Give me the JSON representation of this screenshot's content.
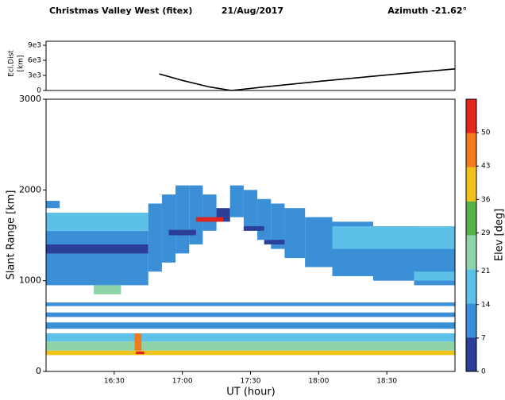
{
  "header": {
    "left": "Christmas Valley West  (fitex)",
    "center": "21/Aug/2017",
    "right": "Azimuth -21.62°"
  },
  "chart_data": [
    {
      "type": "line",
      "ylabel": "Ecl.Dist",
      "yunit": "[km]",
      "x": [
        16.83,
        17.0,
        17.2,
        17.36,
        17.6,
        18.0,
        18.5,
        19.0
      ],
      "values": [
        3300,
        2000,
        700,
        0,
        700,
        1800,
        3100,
        4300
      ],
      "color": "#000000",
      "xlim": [
        16.0,
        19.0
      ],
      "ylim": [
        0,
        9800
      ],
      "yticks": [
        0,
        {
          "value": 3000,
          "label": "3e3"
        },
        {
          "value": 6000,
          "label": "6e3"
        },
        {
          "value": 9000,
          "label": "9e3"
        }
      ]
    },
    {
      "type": "heatmap",
      "xlabel": "UT (hour)",
      "ylabel": "Slant Range [km]",
      "xlim": [
        16.0,
        19.0
      ],
      "ylim": [
        0,
        3000
      ],
      "xticks": [
        {
          "value": 16.5,
          "label": "16:30"
        },
        {
          "value": 17.0,
          "label": "17:00"
        },
        {
          "value": 17.5,
          "label": "17:30"
        },
        {
          "value": 18.0,
          "label": "18:00"
        },
        {
          "value": 18.5,
          "label": "18:30"
        }
      ],
      "yticks": [
        0,
        1000,
        2000,
        3000
      ],
      "colorbar": {
        "label": "Elev [deg]",
        "lim": [
          0,
          57
        ],
        "ticks": [
          0,
          7,
          14,
          21,
          29,
          36,
          43,
          50
        ],
        "colors": [
          "#2b3f99",
          "#3a8fd6",
          "#5cc0e8",
          "#8fd3a8",
          "#5ab04e",
          "#f2c21b",
          "#f07a1e",
          "#e0261f"
        ]
      },
      "patches": [
        {
          "x": [
            16.0,
            19.0
          ],
          "y": [
            180,
            230
          ],
          "elev": 36
        },
        {
          "x": [
            16.0,
            19.0
          ],
          "y": [
            230,
            330
          ],
          "elev": 25
        },
        {
          "x": [
            16.0,
            19.0
          ],
          "y": [
            330,
            420
          ],
          "elev": 16
        },
        {
          "x": [
            16.0,
            19.0
          ],
          "y": [
            470,
            540
          ],
          "elev": 9
        },
        {
          "x": [
            16.0,
            19.0
          ],
          "y": [
            600,
            650
          ],
          "elev": 9
        },
        {
          "x": [
            16.0,
            19.0
          ],
          "y": [
            720,
            760
          ],
          "elev": 10
        },
        {
          "x": [
            16.35,
            16.55
          ],
          "y": [
            850,
            950
          ],
          "elev": 22
        },
        {
          "x": [
            16.65,
            16.7
          ],
          "y": [
            230,
            420
          ],
          "elev": 45
        },
        {
          "x": [
            16.66,
            16.72
          ],
          "y": [
            190,
            220
          ],
          "elev": 52
        },
        {
          "x": [
            16.0,
            16.75
          ],
          "y": [
            950,
            1550
          ],
          "elev": 9
        },
        {
          "x": [
            16.0,
            16.75
          ],
          "y": [
            1300,
            1400
          ],
          "elev": 4
        },
        {
          "x": [
            16.0,
            16.75
          ],
          "y": [
            1550,
            1750
          ],
          "elev": 19
        },
        {
          "x": [
            16.0,
            16.1
          ],
          "y": [
            1800,
            1880
          ],
          "elev": 12
        },
        {
          "x": [
            16.75,
            16.85
          ],
          "y": [
            1100,
            1850
          ],
          "elev": 10
        },
        {
          "x": [
            16.85,
            16.95
          ],
          "y": [
            1200,
            1950
          ],
          "elev": 9
        },
        {
          "x": [
            16.95,
            17.05
          ],
          "y": [
            1300,
            2050
          ],
          "elev": 10
        },
        {
          "x": [
            17.05,
            17.15
          ],
          "y": [
            1400,
            2050
          ],
          "elev": 9
        },
        {
          "x": [
            17.15,
            17.25
          ],
          "y": [
            1550,
            1950
          ],
          "elev": 8
        },
        {
          "x": [
            17.25,
            17.35
          ],
          "y": [
            1650,
            1800
          ],
          "elev": 5
        },
        {
          "x": [
            17.35,
            17.45
          ],
          "y": [
            1700,
            2050
          ],
          "elev": 9
        },
        {
          "x": [
            17.45,
            17.55
          ],
          "y": [
            1550,
            2000
          ],
          "elev": 10
        },
        {
          "x": [
            17.55,
            17.65
          ],
          "y": [
            1450,
            1900
          ],
          "elev": 9
        },
        {
          "x": [
            17.65,
            17.75
          ],
          "y": [
            1350,
            1850
          ],
          "elev": 10
        },
        {
          "x": [
            17.75,
            17.9
          ],
          "y": [
            1250,
            1800
          ],
          "elev": 9
        },
        {
          "x": [
            17.9,
            18.1
          ],
          "y": [
            1150,
            1700
          ],
          "elev": 10
        },
        {
          "x": [
            18.1,
            18.4
          ],
          "y": [
            1050,
            1650
          ],
          "elev": 10
        },
        {
          "x": [
            18.4,
            18.7
          ],
          "y": [
            1000,
            1600
          ],
          "elev": 9
        },
        {
          "x": [
            18.7,
            19.0
          ],
          "y": [
            950,
            1550
          ],
          "elev": 10
        },
        {
          "x": [
            18.1,
            19.0
          ],
          "y": [
            1350,
            1600
          ],
          "elev": 20
        },
        {
          "x": [
            18.7,
            19.0
          ],
          "y": [
            1000,
            1100
          ],
          "elev": 16
        },
        {
          "x": [
            16.9,
            17.1
          ],
          "y": [
            1500,
            1560
          ],
          "elev": 3
        },
        {
          "x": [
            17.1,
            17.3
          ],
          "y": [
            1650,
            1700
          ],
          "elev": 50
        },
        {
          "x": [
            17.45,
            17.6
          ],
          "y": [
            1550,
            1600
          ],
          "elev": 3
        },
        {
          "x": [
            17.6,
            17.75
          ],
          "y": [
            1400,
            1450
          ],
          "elev": 2
        }
      ]
    }
  ]
}
